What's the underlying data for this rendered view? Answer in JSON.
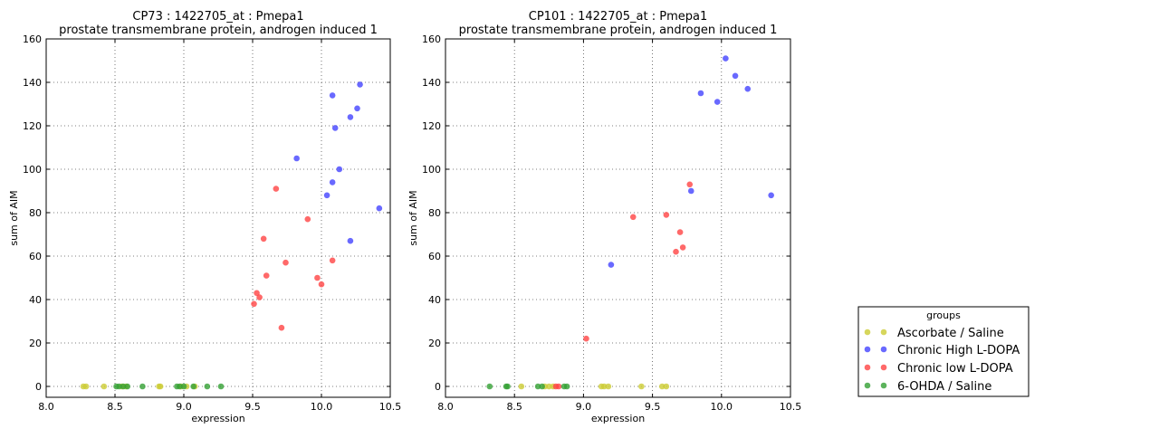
{
  "chart_data": [
    {
      "type": "scatter",
      "title": "CP73 : 1422705_at : Pmepa1",
      "subtitle": "prostate transmembrane protein, androgen induced 1",
      "xlabel": "expression",
      "ylabel": "sum of AIM",
      "xlim": [
        8.0,
        10.5
      ],
      "ylim": [
        -5,
        160
      ],
      "xticks": [
        "8.0",
        "8.5",
        "9.0",
        "9.5",
        "10.0",
        "10.5"
      ],
      "yticks": [
        "0",
        "20",
        "40",
        "60",
        "80",
        "100",
        "120",
        "140",
        "160"
      ],
      "grid": true,
      "series": [
        {
          "name": "Ascorbate / Saline",
          "color": "#cccc33",
          "points": [
            [
              8.27,
              0
            ],
            [
              8.29,
              0
            ],
            [
              8.42,
              0
            ],
            [
              8.55,
              0
            ],
            [
              8.58,
              0
            ],
            [
              8.82,
              0
            ],
            [
              8.83,
              0
            ],
            [
              8.98,
              0
            ],
            [
              9.02,
              0
            ],
            [
              9.08,
              0
            ]
          ]
        },
        {
          "name": "Chronic High L-DOPA",
          "color": "#4444ff",
          "points": [
            [
              10.42,
              82
            ],
            [
              10.28,
              139
            ],
            [
              10.26,
              128
            ],
            [
              10.21,
              124
            ],
            [
              10.21,
              67
            ],
            [
              10.13,
              100
            ],
            [
              10.1,
              119
            ],
            [
              10.08,
              134
            ],
            [
              10.08,
              94
            ],
            [
              10.04,
              88
            ],
            [
              9.82,
              105
            ]
          ]
        },
        {
          "name": "Chronic low L-DOPA",
          "color": "#ff4444",
          "points": [
            [
              9.51,
              38
            ],
            [
              9.53,
              43
            ],
            [
              9.55,
              41
            ],
            [
              9.58,
              68
            ],
            [
              9.6,
              51
            ],
            [
              9.67,
              91
            ],
            [
              9.71,
              27
            ],
            [
              9.74,
              57
            ],
            [
              9.9,
              77
            ],
            [
              9.97,
              50
            ],
            [
              10.0,
              47
            ],
            [
              10.08,
              58
            ]
          ]
        },
        {
          "name": "6-OHDA / Saline",
          "color": "#33a033",
          "points": [
            [
              8.51,
              0
            ],
            [
              8.53,
              0
            ],
            [
              8.56,
              0
            ],
            [
              8.59,
              0
            ],
            [
              8.7,
              0
            ],
            [
              8.95,
              0
            ],
            [
              8.97,
              0
            ],
            [
              9.0,
              0
            ],
            [
              9.07,
              0
            ],
            [
              9.17,
              0
            ],
            [
              9.27,
              0
            ]
          ]
        }
      ]
    },
    {
      "type": "scatter",
      "title": "CP101 : 1422705_at : Pmepa1",
      "subtitle": "prostate transmembrane protein, androgen induced 1",
      "xlabel": "expression",
      "ylabel": "sum of AIM",
      "xlim": [
        8.0,
        10.5
      ],
      "ylim": [
        -5,
        160
      ],
      "xticks": [
        "8.0",
        "8.5",
        "9.0",
        "9.5",
        "10.0",
        "10.5"
      ],
      "yticks": [
        "0",
        "20",
        "40",
        "60",
        "80",
        "100",
        "120",
        "140",
        "160"
      ],
      "grid": true,
      "series": [
        {
          "name": "Ascorbate / Saline",
          "color": "#cccc33",
          "points": [
            [
              8.55,
              0
            ],
            [
              8.72,
              0
            ],
            [
              8.75,
              0
            ],
            [
              8.78,
              0
            ],
            [
              9.13,
              0
            ],
            [
              9.15,
              0
            ],
            [
              9.18,
              0
            ],
            [
              9.42,
              0
            ],
            [
              9.57,
              0
            ],
            [
              9.6,
              0
            ]
          ]
        },
        {
          "name": "Chronic High L-DOPA",
          "color": "#4444ff",
          "points": [
            [
              10.03,
              151
            ],
            [
              10.1,
              143
            ],
            [
              10.19,
              137
            ],
            [
              9.85,
              135
            ],
            [
              9.97,
              131
            ],
            [
              9.78,
              90
            ],
            [
              10.36,
              88
            ],
            [
              9.2,
              56
            ]
          ]
        },
        {
          "name": "Chronic low L-DOPA",
          "color": "#ff4444",
          "points": [
            [
              9.77,
              93
            ],
            [
              9.6,
              79
            ],
            [
              9.36,
              78
            ],
            [
              9.7,
              71
            ],
            [
              9.72,
              64
            ],
            [
              9.67,
              62
            ],
            [
              9.02,
              22
            ],
            [
              8.8,
              0
            ],
            [
              8.82,
              0
            ]
          ]
        },
        {
          "name": "6-OHDA / Saline",
          "color": "#33a033",
          "points": [
            [
              8.32,
              0
            ],
            [
              8.44,
              0
            ],
            [
              8.45,
              0
            ],
            [
              8.67,
              0
            ],
            [
              8.7,
              0
            ],
            [
              8.86,
              0
            ],
            [
              8.88,
              0
            ]
          ]
        }
      ]
    }
  ],
  "legend": {
    "title": "groups",
    "position": "lower-right",
    "items": [
      {
        "label": "Ascorbate / Saline",
        "color": "#cccc33"
      },
      {
        "label": "Chronic High L-DOPA",
        "color": "#4444ff"
      },
      {
        "label": "Chronic low L-DOPA",
        "color": "#ff4444"
      },
      {
        "label": "6-OHDA / Saline",
        "color": "#33a033"
      }
    ]
  }
}
